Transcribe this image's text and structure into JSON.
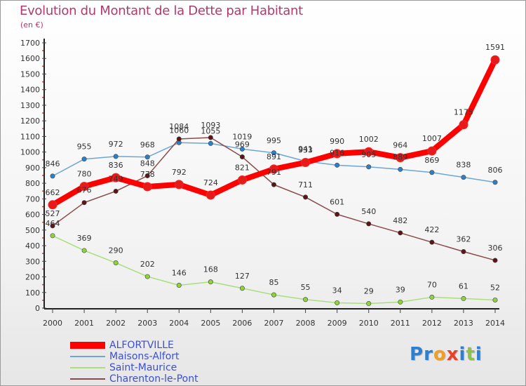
{
  "title": "Evolution du Montant de la Dette par Habitant",
  "unit_label": "(en €)",
  "logo": {
    "text": "Proxiti",
    "letters": [
      {
        "ch": "P",
        "color": "#2f7fd0"
      },
      {
        "ch": "r",
        "color": "#2f7fd0"
      },
      {
        "ch": "o",
        "color": "#f0a020"
      },
      {
        "ch": "x",
        "color": "#e8402a"
      },
      {
        "ch": "i",
        "color": "#2f7fd0"
      },
      {
        "ch": "t",
        "color": "#8bc34a"
      },
      {
        "ch": "i",
        "color": "#2f7fd0"
      }
    ]
  },
  "chart_data": {
    "type": "line",
    "title": "Evolution du Montant de la Dette par Habitant",
    "ylabel": "(en €)",
    "xlabel": "",
    "x": [
      "2000",
      "2001",
      "2002",
      "2003",
      "2004",
      "2005",
      "2006",
      "2007",
      "2008",
      "2009",
      "2010",
      "2011",
      "2012",
      "2013",
      "2014"
    ],
    "ylim": [
      0,
      1700
    ],
    "yticks": [
      0,
      100,
      200,
      300,
      400,
      500,
      600,
      700,
      800,
      900,
      1000,
      1100,
      1200,
      1300,
      1400,
      1500,
      1600,
      1700
    ],
    "grid": false,
    "legend": "bottom-left",
    "series": [
      {
        "name": "ALFORTVILLE",
        "color": "#ff0000",
        "marker": "#e51b1b",
        "emphasis": true,
        "values": [
          662,
          780,
          836,
          778,
          792,
          724,
          821,
          891,
          933,
          990,
          1002,
          964,
          1007,
          1175,
          1591
        ]
      },
      {
        "name": "Maisons-Alfort",
        "color": "#6ba6d6",
        "marker": "#2f7fc6",
        "emphasis": false,
        "values": [
          846,
          955,
          972,
          968,
          1060,
          1055,
          1019,
          995,
          941,
          916,
          905,
          889,
          869,
          838,
          806
        ]
      },
      {
        "name": "Saint-Maurice",
        "color": "#a8df7c",
        "marker": "#8fd13f",
        "emphasis": false,
        "values": [
          464,
          369,
          290,
          202,
          146,
          168,
          127,
          85,
          55,
          34,
          29,
          39,
          70,
          61,
          52
        ]
      },
      {
        "name": "Charenton-le-Pont",
        "color": "#8a4a4a",
        "marker": "#5a1616",
        "emphasis": false,
        "values": [
          527,
          676,
          749,
          848,
          1084,
          1093,
          969,
          791,
          711,
          601,
          540,
          482,
          422,
          362,
          306
        ]
      }
    ]
  }
}
